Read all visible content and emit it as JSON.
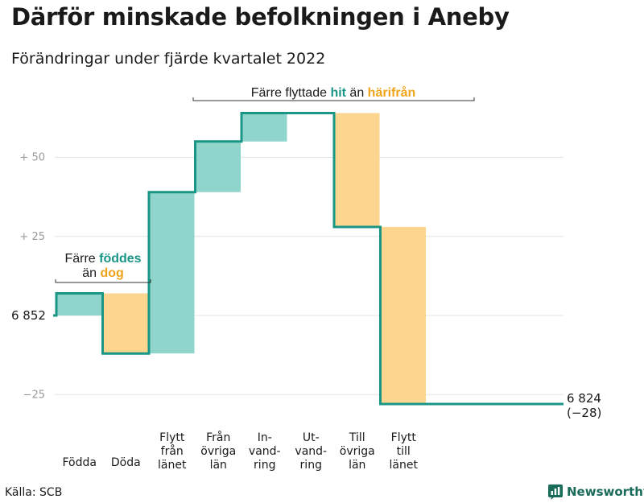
{
  "title": "Därför minskade befolkningen i Aneby",
  "subtitle": "Förändringar under fjärde kvartalet 2022",
  "source": "Källa: SCB",
  "brand": {
    "name": "Newsworthy",
    "icon": "bar-chart-logo-icon"
  },
  "colors": {
    "increase": "#8fd5cb",
    "decrease": "#fcd58e",
    "line": "#1a9687",
    "highlight_teal": "#1a9687",
    "highlight_orange": "#f0a41c",
    "grid": "#e3e3e3"
  },
  "annotations": {
    "births": {
      "line1_pre": "Färre ",
      "line1_hl": "föddes",
      "line2_pre": "än ",
      "line2_hl": "dog"
    },
    "migration": {
      "pre": "Färre flyttade ",
      "hl1": "hit",
      "mid": " än ",
      "hl2": "härifrån"
    }
  },
  "chart_data": {
    "type": "waterfall",
    "start": {
      "value": 6852,
      "label": "6 852"
    },
    "end": {
      "value": 6824,
      "label": "6 824",
      "change_label": "(−28)"
    },
    "y_ticks": [
      {
        "value": -25,
        "label": "−25"
      },
      {
        "value": 0,
        "label": ""
      },
      {
        "value": 25,
        "label": "+ 25"
      },
      {
        "value": 50,
        "label": "+ 50"
      }
    ],
    "y_range": [
      -35,
      66
    ],
    "grid": true,
    "steps": [
      {
        "category": "Födda",
        "lines": [
          "Födda"
        ],
        "change": 7
      },
      {
        "category": "Döda",
        "lines": [
          "Döda"
        ],
        "change": -19
      },
      {
        "category": "Flytt från länet",
        "lines": [
          "Flytt",
          "från",
          "länet"
        ],
        "change": 51
      },
      {
        "category": "Från övriga län",
        "lines": [
          "Från",
          "övriga",
          "län"
        ],
        "change": 16
      },
      {
        "category": "Invandring",
        "lines": [
          "In-",
          "vand-",
          "ring"
        ],
        "change": 9
      },
      {
        "category": "Utvandring",
        "lines": [
          "Ut-",
          "vand-",
          "ring"
        ],
        "change": 0
      },
      {
        "category": "Till övriga län",
        "lines": [
          "Till",
          "övriga",
          "län"
        ],
        "change": -36
      },
      {
        "category": "Flytt till länet",
        "lines": [
          "Flytt",
          "till",
          "länet"
        ],
        "change": -56
      }
    ]
  }
}
